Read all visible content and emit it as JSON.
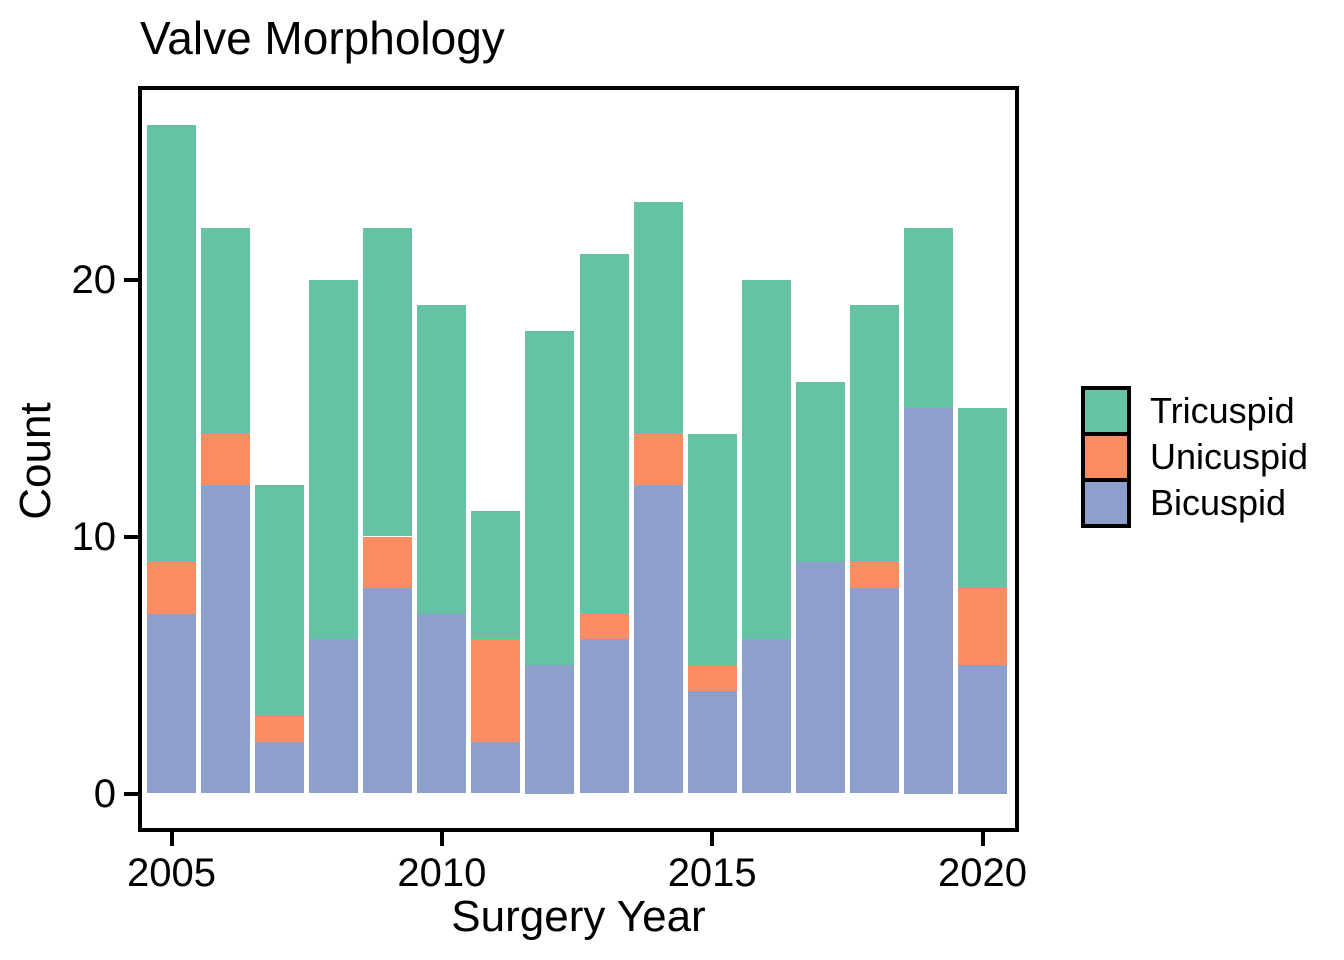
{
  "title": "Valve Morphology",
  "y_axis": {
    "label": "Count",
    "ticks": [
      "0",
      "10",
      "20"
    ]
  },
  "x_axis": {
    "label": "Surgery Year",
    "ticks": [
      "2005",
      "2010",
      "2015",
      "2020"
    ]
  },
  "legend": {
    "position": "right",
    "items": [
      {
        "label": "Tricuspid",
        "color": "#66C2A5"
      },
      {
        "label": "Unicuspid",
        "color": "#FC8D62"
      },
      {
        "label": "Bicuspid",
        "color": "#8DA0CB"
      }
    ]
  },
  "chart_data": {
    "type": "bar",
    "stacked": true,
    "title": "Valve Morphology",
    "xlabel": "Surgery Year",
    "ylabel": "Count",
    "categories": [
      2005,
      2006,
      2007,
      2008,
      2009,
      2010,
      2011,
      2012,
      2013,
      2014,
      2015,
      2016,
      2017,
      2018,
      2019,
      2020
    ],
    "series": [
      {
        "name": "Bicuspid",
        "color": "#8DA0CB",
        "values": [
          7,
          12,
          2,
          6,
          8,
          7,
          2,
          5,
          6,
          12,
          4,
          6,
          9,
          8,
          15,
          5
        ]
      },
      {
        "name": "Unicuspid",
        "color": "#FC8D62",
        "values": [
          2,
          2,
          1,
          0,
          2,
          0,
          4,
          0,
          1,
          2,
          1,
          0,
          0,
          1,
          0,
          3
        ]
      },
      {
        "name": "Tricuspid",
        "color": "#66C2A5",
        "values": [
          17,
          8,
          9,
          14,
          12,
          12,
          5,
          13,
          14,
          9,
          9,
          14,
          7,
          10,
          7,
          7
        ]
      }
    ],
    "totals": [
      26,
      22,
      12,
      20,
      22,
      19,
      11,
      18,
      21,
      23,
      14,
      20,
      16,
      19,
      22,
      15
    ],
    "stack_order": "bottom-to-top",
    "ylim": [
      0,
      26
    ],
    "xtick_values": [
      2005,
      2010,
      2015,
      2020
    ],
    "ytick_values": [
      0,
      10,
      20
    ],
    "grid": false,
    "legend_position": "right"
  }
}
